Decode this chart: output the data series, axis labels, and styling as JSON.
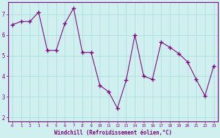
{
  "x": [
    0,
    1,
    2,
    3,
    4,
    5,
    6,
    7,
    8,
    9,
    10,
    11,
    12,
    13,
    14,
    15,
    16,
    17,
    18,
    19,
    20,
    21,
    22,
    23
  ],
  "y": [
    6.5,
    6.65,
    6.65,
    7.1,
    5.25,
    5.25,
    6.55,
    7.3,
    5.15,
    5.15,
    3.55,
    3.25,
    2.45,
    3.8,
    6.0,
    4.0,
    3.85,
    5.65,
    5.4,
    5.1,
    4.7,
    3.85,
    3.05,
    4.5
  ],
  "line_color": "#800080",
  "marker": "+",
  "marker_size": 4,
  "bg_color": "#cff0ee",
  "grid_color": "#aadddd",
  "xlabel": "Windchill (Refroidissement éolien,°C)",
  "ylim": [
    1.8,
    7.6
  ],
  "xlim": [
    -0.5,
    23.5
  ],
  "yticks": [
    2,
    3,
    4,
    5,
    6,
    7
  ],
  "xticks": [
    0,
    1,
    2,
    3,
    4,
    5,
    6,
    7,
    8,
    9,
    10,
    11,
    12,
    13,
    14,
    15,
    16,
    17,
    18,
    19,
    20,
    21,
    22,
    23
  ],
  "spine_color": "#800080",
  "tick_color": "#800080",
  "label_color": "#800080"
}
